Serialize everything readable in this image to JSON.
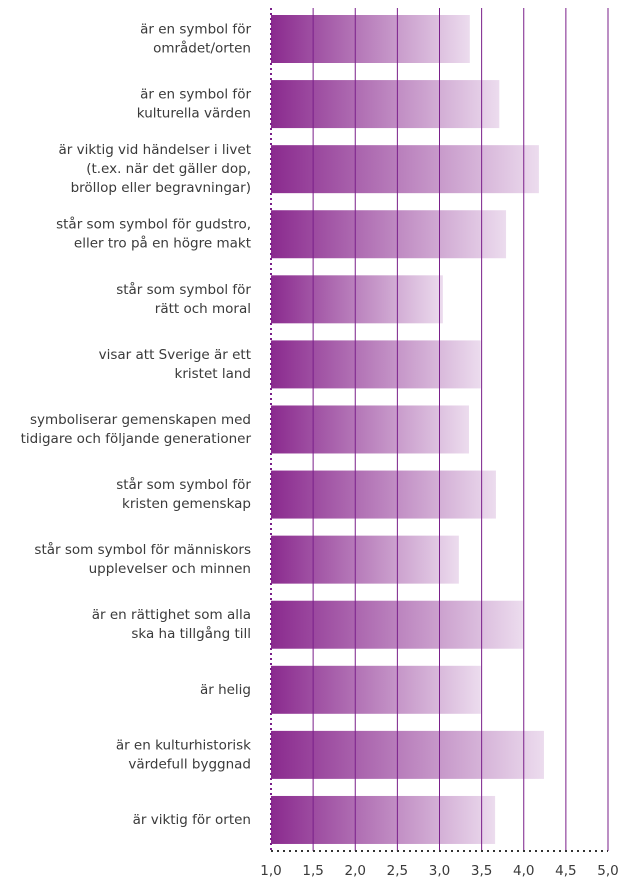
{
  "chart_data": {
    "type": "barh",
    "categories": [
      [
        "är en symbol för",
        "området/orten"
      ],
      [
        "är en symbol för",
        "kulturella värden"
      ],
      [
        "är viktig vid händelser i livet",
        "(t.ex. när det gäller dop,",
        "bröllop eller begravningar)"
      ],
      [
        "står som symbol för gudstro,",
        "eller tro på en högre makt"
      ],
      [
        "står som symbol för",
        "rätt och moral"
      ],
      [
        "visar att Sverige är ett",
        "kristet land"
      ],
      [
        "symboliserar gemenskapen med",
        "tidigare och följande generationer"
      ],
      [
        "står som symbol för",
        "kristen gemenskap"
      ],
      [
        "står som symbol för människors",
        "upplevelser och minnen"
      ],
      [
        "är en rättighet som alla",
        "ska ha tillgång till"
      ],
      [
        "är helig"
      ],
      [
        "är en kulturhistorisk",
        "värdefull byggnad"
      ],
      [
        "är viktig för orten"
      ]
    ],
    "values": [
      3.36,
      3.71,
      4.18,
      3.79,
      3.04,
      3.49,
      3.35,
      3.67,
      3.23,
      3.99,
      3.49,
      4.24,
      3.66
    ],
    "color": "#8a2a8e",
    "xlim": [
      1.0,
      5.0
    ],
    "xticks": [
      {
        "value": 1.0,
        "label": "1,0"
      },
      {
        "value": 1.5,
        "label": "1,5"
      },
      {
        "value": 2.0,
        "label": "2,0"
      },
      {
        "value": 2.5,
        "label": "2,5"
      },
      {
        "value": 3.0,
        "label": "3,0"
      },
      {
        "value": 3.5,
        "label": "3,5"
      },
      {
        "value": 4.0,
        "label": "4,0"
      },
      {
        "value": 4.5,
        "label": "4,5"
      },
      {
        "value": 5.0,
        "label": "5,0"
      }
    ],
    "grid": true
  }
}
